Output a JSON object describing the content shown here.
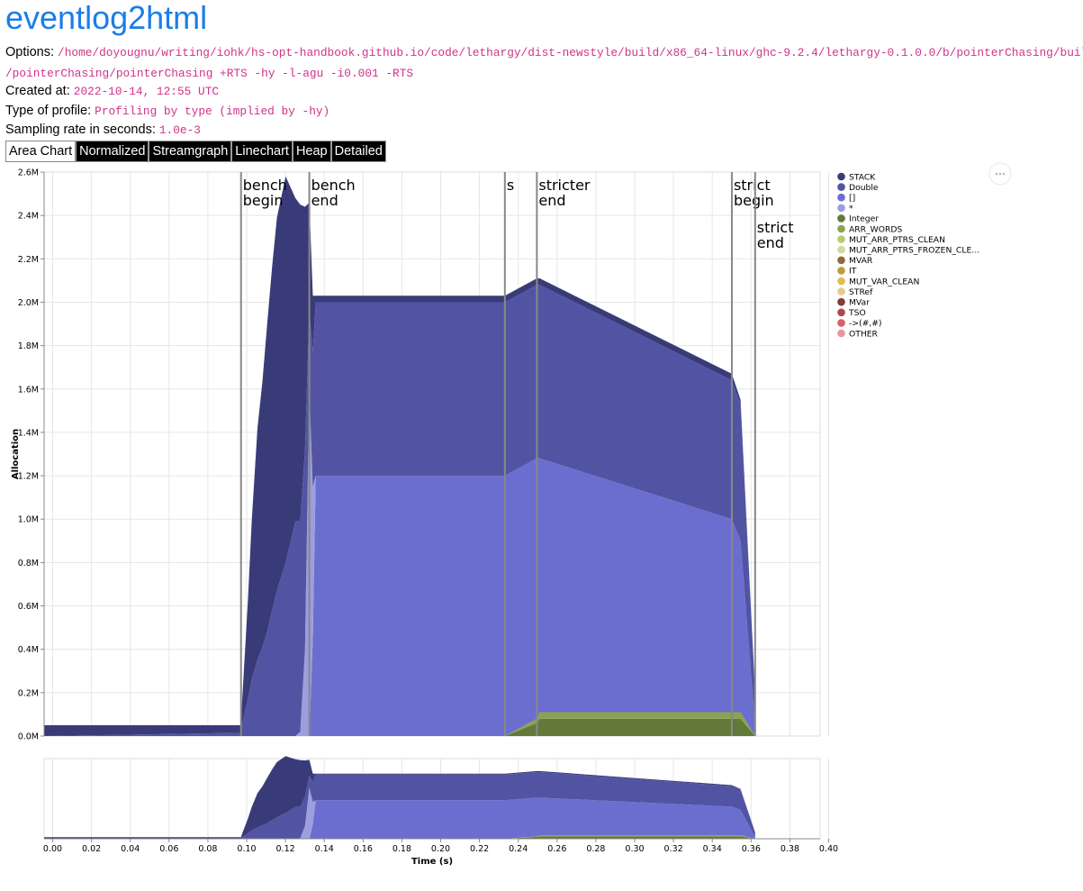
{
  "page": {
    "title": "eventlog2html",
    "options_label": "Options:",
    "options_value_line1": "/home/doyougnu/writing/iohk/hs-opt-handbook.github.io/code/lethargy/dist-newstyle/build/x86_64-linux/ghc-9.2.4/lethargy-0.1.0.0/b/pointerChasing/build",
    "options_value_line2": "/pointerChasing/pointerChasing +RTS -hy -l-agu -i0.001 -RTS",
    "created_label": "Created at:",
    "created_value": "2022-10-14, 12:55 UTC",
    "profile_label": "Type of profile:",
    "profile_value": "Profiling by type (implied by -hy)",
    "sampling_label": "Sampling rate in seconds:",
    "sampling_value": "1.0e-3"
  },
  "tabs": [
    {
      "label": "Area Chart",
      "active": true
    },
    {
      "label": "Normalized",
      "active": false
    },
    {
      "label": "Streamgraph",
      "active": false
    },
    {
      "label": "Linechart",
      "active": false
    },
    {
      "label": "Heap",
      "active": false
    },
    {
      "label": "Detailed",
      "active": false
    }
  ],
  "menu_icon": "more-horizontal-icon",
  "chart_data": {
    "type": "area",
    "stacked": true,
    "ylabel": "Allocation",
    "xlabel": "Time (s)",
    "ylim": [
      0,
      2.6
    ],
    "xlim": [
      0,
      0.4
    ],
    "y_ticks": [
      "0.0M",
      "0.2M",
      "0.4M",
      "0.6M",
      "0.8M",
      "1.0M",
      "1.2M",
      "1.4M",
      "1.6M",
      "1.8M",
      "2.0M",
      "2.2M",
      "2.4M",
      "2.6M"
    ],
    "x_ticks": [
      "0.00",
      "0.02",
      "0.04",
      "0.06",
      "0.08",
      "0.10",
      "0.12",
      "0.14",
      "0.16",
      "0.18",
      "0.20",
      "0.22",
      "0.24",
      "0.26",
      "0.28",
      "0.30",
      "0.32",
      "0.34",
      "0.36",
      "0.38",
      "0.40"
    ],
    "grid": true,
    "legend_position": "right",
    "legend": [
      {
        "name": "STACK",
        "color": "#393b79"
      },
      {
        "name": "Double",
        "color": "#5254a3"
      },
      {
        "name": "[]",
        "color": "#6b6ecf"
      },
      {
        "name": "*",
        "color": "#9c9ede"
      },
      {
        "name": "Integer",
        "color": "#637939"
      },
      {
        "name": "ARR_WORDS",
        "color": "#8ca252"
      },
      {
        "name": "MUT_ARR_PTRS_CLEAN",
        "color": "#b5cf6b"
      },
      {
        "name": "MUT_ARR_PTRS_FROZEN_CLE...",
        "color": "#cedb9c"
      },
      {
        "name": "MVAR",
        "color": "#8c6d31"
      },
      {
        "name": "IT",
        "color": "#bd9e39"
      },
      {
        "name": "MUT_VAR_CLEAN",
        "color": "#e7ba52"
      },
      {
        "name": "STRef",
        "color": "#e7cb94"
      },
      {
        "name": "MVar",
        "color": "#843c39"
      },
      {
        "name": "TSO",
        "color": "#ad494a"
      },
      {
        "name": "->(#,#)",
        "color": "#d6616b"
      },
      {
        "name": "OTHER",
        "color": "#e7969c"
      }
    ],
    "markers": [
      {
        "x": 0.1015,
        "line1": "bench",
        "line2": "begin",
        "offset": 0
      },
      {
        "x": 0.1367,
        "line1": "bench",
        "line2": "end",
        "offset": 0
      },
      {
        "x": 0.2375,
        "line1": "s",
        "line2": "",
        "offset": 0
      },
      {
        "x": 0.254,
        "line1": "stricter",
        "line2": "end",
        "offset": 0
      },
      {
        "x": 0.3545,
        "line1": "strict",
        "line2": "begin",
        "offset": 0
      },
      {
        "x": 0.3665,
        "line1": "strict",
        "line2": "end",
        "offset": 1
      }
    ],
    "x": [
      0.0,
      0.1015,
      0.102,
      0.105,
      0.107,
      0.11,
      0.1125,
      0.115,
      0.1175,
      0.12,
      0.1245,
      0.1295,
      0.132,
      0.1345,
      0.1367,
      0.1385,
      0.14,
      0.2375,
      0.254,
      0.2555,
      0.3545,
      0.359,
      0.3665
    ],
    "series": [
      {
        "name": "Integer",
        "color": "#637939",
        "values": [
          0,
          0,
          0,
          0,
          0,
          0,
          0,
          0,
          0,
          0,
          0,
          0,
          0,
          0,
          0,
          0,
          0,
          0,
          0.06,
          0.08,
          0.08,
          0.08,
          0
        ]
      },
      {
        "name": "ARR_WORDS",
        "color": "#8ca252",
        "values": [
          0,
          0,
          0,
          0,
          0,
          0,
          0,
          0,
          0,
          0,
          0,
          0,
          0,
          0,
          0,
          0,
          0,
          0,
          0.02,
          0.03,
          0.03,
          0.03,
          0
        ]
      },
      {
        "name": "[]",
        "color": "#6b6ecf",
        "values": [
          0,
          0,
          0,
          0,
          0,
          0,
          0,
          0,
          0,
          0,
          0,
          0,
          0,
          0,
          0,
          0.45,
          1.2,
          1.2,
          1.2,
          1.17,
          0.89,
          0.79,
          0.05
        ]
      },
      {
        "name": "*",
        "color": "#9c9ede",
        "values": [
          0,
          0,
          0,
          0,
          0,
          0,
          0,
          0,
          0,
          0,
          0,
          0,
          0.02,
          0.4,
          1.6,
          0.7,
          0,
          0,
          0,
          0,
          0,
          0,
          0
        ]
      },
      {
        "name": "Double",
        "color": "#5254a3",
        "values": [
          0,
          0.015,
          0.05,
          0.17,
          0.26,
          0.35,
          0.41,
          0.48,
          0.58,
          0.67,
          0.8,
          0.99,
          0.97,
          0.92,
          0.36,
          0.62,
          0.8,
          0.8,
          0.8,
          0.8,
          0.64,
          0.63,
          0.15
        ]
      },
      {
        "name": "STACK",
        "color": "#393b79",
        "values": [
          0.05,
          0.035,
          0.1,
          0.45,
          0.73,
          1.07,
          1.22,
          1.42,
          1.58,
          1.72,
          1.78,
          1.49,
          1.46,
          1.12,
          0.5,
          0.26,
          0.03,
          0.03,
          0.03,
          0.03,
          0.03,
          0.02,
          0
        ]
      }
    ]
  }
}
